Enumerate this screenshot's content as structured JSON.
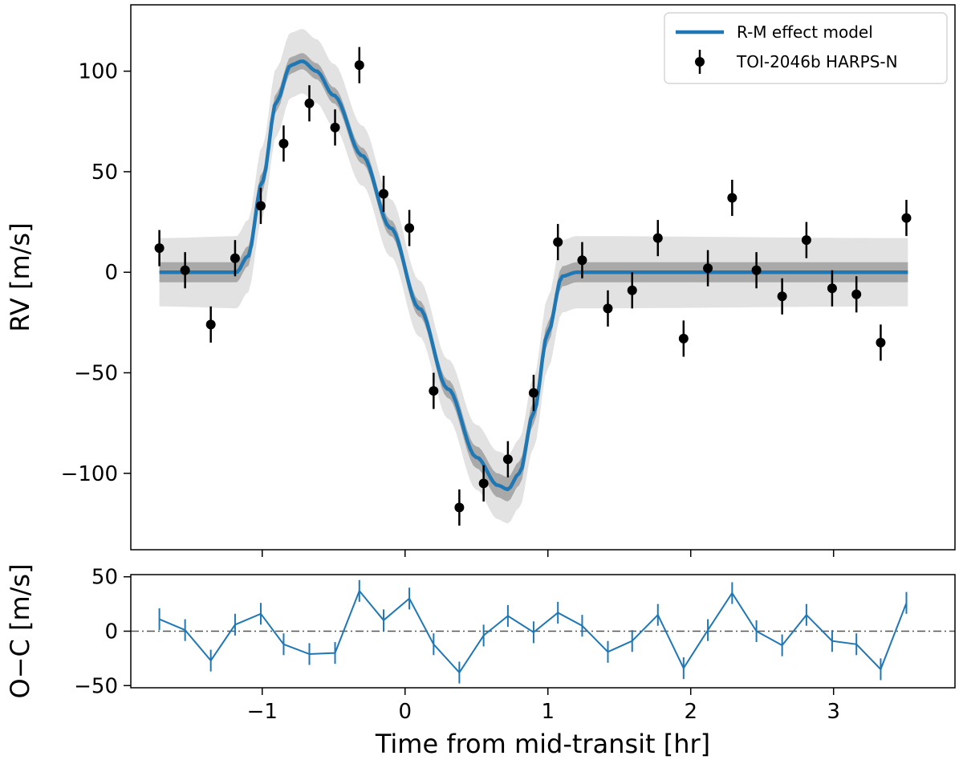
{
  "chart_data": [
    {
      "type": "scatter",
      "panel": "main",
      "ylabel": "RV [m/s]",
      "xlim": [
        -1.92,
        3.85
      ],
      "ylim": [
        -138,
        133
      ],
      "yticks": [
        -100,
        -50,
        0,
        50,
        100
      ],
      "ytick_labels": [
        "−100",
        "−50",
        "0",
        "50",
        "100"
      ],
      "xticks": [
        -1,
        0,
        1,
        2,
        3
      ],
      "legend": {
        "position": "top-right",
        "entries": [
          {
            "label": "R-M effect model",
            "color": "#1f77b4",
            "kind": "line"
          },
          {
            "label": "TOI-2046b HARPS-N",
            "color": "#000000",
            "kind": "errorbar"
          }
        ]
      },
      "model_curve": {
        "name": "R-M effect model",
        "color": "#1f77b4",
        "x": [
          -1.72,
          -1.18,
          -1.1,
          -1.0,
          -0.9,
          -0.8,
          -0.72,
          -0.62,
          -0.5,
          -0.3,
          -0.1,
          0.1,
          0.3,
          0.5,
          0.65,
          0.72,
          0.8,
          0.9,
          1.0,
          1.1,
          1.2,
          3.52
        ],
        "y": [
          0,
          0,
          8,
          45,
          85,
          103,
          105,
          100,
          88,
          58,
          22,
          -18,
          -58,
          -92,
          -106,
          -108,
          -100,
          -70,
          -30,
          -2,
          0,
          0
        ],
        "band_1sigma": [
          {
            "x": -1.72,
            "inner": 5
          },
          {
            "x": -1.1,
            "inner": 5
          },
          {
            "x": -0.72,
            "inner": 4
          },
          {
            "x": 0.1,
            "inner": 4
          },
          {
            "x": 0.72,
            "inner": 6
          },
          {
            "x": 1.1,
            "inner": 5
          },
          {
            "x": 3.52,
            "inner": 5
          }
        ],
        "band_2sigma": [
          {
            "x": -1.72,
            "outer": 17
          },
          {
            "x": -1.1,
            "outer": 18
          },
          {
            "x": -0.72,
            "outer": 16
          },
          {
            "x": 0.1,
            "outer": 14
          },
          {
            "x": 0.72,
            "outer": 17
          },
          {
            "x": 1.1,
            "outer": 18
          },
          {
            "x": 3.52,
            "outer": 17
          }
        ]
      },
      "series": [
        {
          "name": "TOI-2046b HARPS-N",
          "color": "#000000",
          "x": [
            -1.72,
            -1.54,
            -1.36,
            -1.19,
            -1.01,
            -0.85,
            -0.67,
            -0.49,
            -0.32,
            -0.15,
            0.03,
            0.2,
            0.38,
            0.55,
            0.72,
            0.9,
            1.07,
            1.24,
            1.42,
            1.59,
            1.77,
            1.95,
            2.12,
            2.29,
            2.46,
            2.64,
            2.81,
            2.99,
            3.16,
            3.33,
            3.51
          ],
          "y": [
            12,
            1,
            -26,
            7,
            33,
            64,
            84,
            72,
            103,
            39,
            22,
            -59,
            -117,
            -105,
            -93,
            -60,
            15,
            6,
            -18,
            -9,
            17,
            -33,
            2,
            37,
            1,
            -12,
            16,
            -8,
            -11,
            -35,
            27
          ],
          "yerr": [
            9,
            9,
            9,
            9,
            9,
            9,
            9,
            9,
            9,
            9,
            9,
            9,
            9,
            9,
            9,
            9,
            9,
            9,
            9,
            9,
            9,
            9,
            9,
            9,
            9,
            9,
            9,
            9,
            9,
            9,
            9
          ]
        }
      ]
    },
    {
      "type": "line",
      "panel": "residuals",
      "xlabel": "Time from mid-transit [hr]",
      "ylabel": "O−C [m/s]",
      "xlim": [
        -1.92,
        3.85
      ],
      "ylim": [
        -52,
        52
      ],
      "yticks": [
        -50,
        0,
        50
      ],
      "ytick_labels": [
        "−50",
        "0",
        "50"
      ],
      "xticks": [
        -1,
        0,
        1,
        2,
        3
      ],
      "xtick_labels": [
        "−1",
        "0",
        "1",
        "2",
        "3"
      ],
      "zero_line": {
        "style": "dash-dot",
        "color": "#555555"
      },
      "series": [
        {
          "name": "residuals",
          "color": "#1f77b4",
          "x": [
            -1.72,
            -1.54,
            -1.36,
            -1.19,
            -1.01,
            -0.85,
            -0.67,
            -0.49,
            -0.32,
            -0.15,
            0.03,
            0.2,
            0.38,
            0.55,
            0.72,
            0.9,
            1.07,
            1.24,
            1.42,
            1.59,
            1.77,
            1.95,
            2.12,
            2.29,
            2.46,
            2.64,
            2.81,
            2.99,
            3.16,
            3.33,
            3.51
          ],
          "y": [
            11,
            1,
            -27,
            6,
            16,
            -12,
            -21,
            -20,
            37,
            10,
            30,
            -12,
            -38,
            -4,
            14,
            -1,
            17,
            5,
            -19,
            -9,
            15,
            -34,
            1,
            35,
            0,
            -13,
            15,
            -9,
            -12,
            -35,
            26
          ],
          "yerr": [
            10,
            10,
            10,
            10,
            10,
            10,
            10,
            10,
            10,
            10,
            10,
            10,
            10,
            10,
            10,
            10,
            10,
            10,
            10,
            10,
            10,
            10,
            10,
            10,
            10,
            10,
            10,
            10,
            10,
            10,
            10
          ]
        }
      ]
    }
  ]
}
